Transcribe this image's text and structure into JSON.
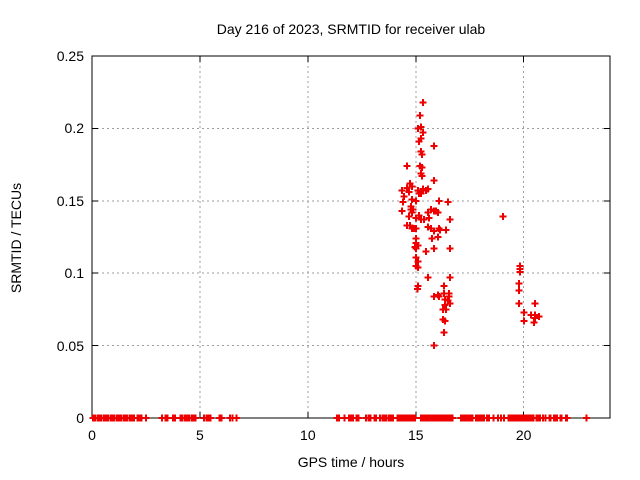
{
  "page": {
    "background": "#ffffff",
    "text_color": "#000000"
  },
  "chart_data": {
    "type": "scatter",
    "title": "Day 216 of 2023, SRMTID for receiver ulab",
    "xlabel": "GPS time / hours",
    "ylabel": "SRMTID / TECUs",
    "xlim": [
      0,
      24
    ],
    "ylim": [
      0,
      0.25
    ],
    "xticks": [
      0,
      5,
      10,
      15,
      20
    ],
    "xtick_labels": [
      "0",
      "5",
      "10",
      "15",
      "20"
    ],
    "yticks": [
      0,
      0.05,
      0.1,
      0.15,
      0.2,
      0.25
    ],
    "ytick_labels": [
      "0",
      "0.05",
      "0.1",
      "0.15",
      "0.2",
      "0.25"
    ],
    "grid": true,
    "grid_style": "dashed",
    "grid_color": "#9e9e9e",
    "border_color": "#000000",
    "legend_position": "none",
    "marker": "plus",
    "marker_color": "#ee0000",
    "series": [
      {
        "name": "SRMTID",
        "points": [
          [
            15.34,
            0.218
          ],
          [
            15.2,
            0.209
          ],
          [
            15.25,
            0.201
          ],
          [
            15.11,
            0.2
          ],
          [
            15.34,
            0.197
          ],
          [
            15.25,
            0.193
          ],
          [
            15.15,
            0.191
          ],
          [
            15.85,
            0.188
          ],
          [
            15.25,
            0.184
          ],
          [
            15.29,
            0.182
          ],
          [
            14.6,
            0.174
          ],
          [
            15.2,
            0.174
          ],
          [
            15.29,
            0.173
          ],
          [
            15.25,
            0.169
          ],
          [
            15.29,
            0.167
          ],
          [
            15.85,
            0.164
          ],
          [
            14.74,
            0.162
          ],
          [
            14.83,
            0.16
          ],
          [
            14.6,
            0.159
          ],
          [
            14.37,
            0.157
          ],
          [
            15.11,
            0.157
          ],
          [
            15.34,
            0.158
          ],
          [
            15.57,
            0.158
          ],
          [
            14.69,
            0.156
          ],
          [
            15.15,
            0.155
          ],
          [
            15.48,
            0.157
          ],
          [
            15.25,
            0.155
          ],
          [
            14.46,
            0.153
          ],
          [
            14.83,
            0.151
          ],
          [
            15.02,
            0.15
          ],
          [
            16.08,
            0.15
          ],
          [
            16.5,
            0.149
          ],
          [
            14.41,
            0.149
          ],
          [
            14.78,
            0.146
          ],
          [
            14.88,
            0.144
          ],
          [
            14.37,
            0.143
          ],
          [
            14.79,
            0.144
          ],
          [
            14.83,
            0.142
          ],
          [
            15.71,
            0.144
          ],
          [
            15.85,
            0.143
          ],
          [
            16.03,
            0.142
          ],
          [
            15.57,
            0.142
          ],
          [
            15.94,
            0.143
          ],
          [
            14.69,
            0.139
          ],
          [
            15.15,
            0.14
          ],
          [
            15.02,
            0.138
          ],
          [
            15.25,
            0.137
          ],
          [
            15.39,
            0.137
          ],
          [
            15.62,
            0.138
          ],
          [
            16.59,
            0.137
          ],
          [
            14.6,
            0.133
          ],
          [
            14.74,
            0.133
          ],
          [
            14.92,
            0.131
          ],
          [
            14.83,
            0.131
          ],
          [
            15.02,
            0.131
          ],
          [
            15.57,
            0.132
          ],
          [
            15.71,
            0.131
          ],
          [
            16.08,
            0.131
          ],
          [
            15.85,
            0.129
          ],
          [
            16.13,
            0.13
          ],
          [
            16.4,
            0.13
          ],
          [
            16.03,
            0.125
          ],
          [
            15.76,
            0.124
          ],
          [
            15.02,
            0.124
          ],
          [
            15.02,
            0.121
          ],
          [
            14.97,
            0.118
          ],
          [
            15.11,
            0.119
          ],
          [
            15.02,
            0.117
          ],
          [
            15.85,
            0.117
          ],
          [
            16.59,
            0.117
          ],
          [
            15.48,
            0.115
          ],
          [
            15.02,
            0.111
          ],
          [
            15.11,
            0.108
          ],
          [
            15.02,
            0.105
          ],
          [
            15.11,
            0.104
          ],
          [
            15.57,
            0.097
          ],
          [
            16.59,
            0.097
          ],
          [
            15.11,
            0.091
          ],
          [
            15.07,
            0.089
          ],
          [
            16.31,
            0.091
          ],
          [
            15.85,
            0.084
          ],
          [
            16.03,
            0.085
          ],
          [
            16.08,
            0.084
          ],
          [
            16.31,
            0.086
          ],
          [
            16.54,
            0.086
          ],
          [
            16.54,
            0.084
          ],
          [
            16.36,
            0.082
          ],
          [
            16.5,
            0.081
          ],
          [
            16.59,
            0.079
          ],
          [
            16.36,
            0.078
          ],
          [
            16.27,
            0.075
          ],
          [
            16.4,
            0.075
          ],
          [
            16.27,
            0.068
          ],
          [
            16.36,
            0.067
          ],
          [
            16.31,
            0.059
          ],
          [
            15.85,
            0.05
          ],
          [
            19.04,
            0.139
          ],
          [
            19.83,
            0.105
          ],
          [
            19.83,
            0.103
          ],
          [
            19.83,
            0.101
          ],
          [
            19.79,
            0.093
          ],
          [
            19.79,
            0.088
          ],
          [
            19.79,
            0.079
          ],
          [
            20.53,
            0.079
          ],
          [
            20.02,
            0.073
          ],
          [
            20.34,
            0.071
          ],
          [
            20.53,
            0.071
          ],
          [
            20.53,
            0.069
          ],
          [
            20.71,
            0.07
          ],
          [
            20.02,
            0.067
          ],
          [
            20.48,
            0.066
          ]
        ],
        "baseline_zero_x": [
          0.05,
          0.15,
          0.25,
          0.35,
          0.45,
          0.55,
          0.65,
          0.75,
          0.85,
          0.95,
          1.05,
          1.15,
          1.25,
          1.35,
          1.45,
          1.55,
          1.65,
          1.75,
          1.85,
          1.95,
          2.1,
          2.2,
          2.3,
          2.5,
          3.25,
          3.4,
          3.5,
          3.75,
          3.85,
          4.1,
          4.2,
          4.3,
          4.4,
          4.5,
          4.6,
          4.7,
          4.8,
          5.2,
          5.3,
          5.4,
          5.5,
          5.9,
          6.0,
          6.4,
          6.5,
          6.7,
          11.35,
          11.45,
          11.7,
          11.9,
          12.0,
          12.1,
          12.25,
          12.35,
          12.7,
          12.8,
          12.9,
          13.1,
          13.15,
          13.35,
          13.45,
          13.55,
          13.65,
          13.75,
          13.85,
          13.95,
          14.15,
          14.22,
          14.3,
          14.37,
          14.45,
          14.52,
          14.6,
          14.67,
          14.75,
          14.82,
          14.9,
          14.97,
          15.25,
          15.32,
          15.4,
          15.47,
          15.55,
          15.62,
          15.7,
          15.77,
          15.85,
          15.92,
          16.0,
          16.07,
          16.15,
          16.22,
          16.3,
          16.37,
          16.45,
          16.52,
          16.6,
          16.7,
          17.1,
          17.17,
          17.25,
          17.32,
          17.4,
          17.47,
          17.55,
          17.62,
          17.8,
          17.87,
          17.95,
          18.02,
          18.1,
          18.17,
          18.3,
          18.4,
          18.6,
          18.8,
          18.95,
          19.1,
          19.3,
          19.37,
          19.45,
          19.52,
          19.6,
          19.67,
          19.75,
          19.82,
          19.9,
          20.0,
          20.07,
          20.15,
          20.22,
          20.3,
          20.37,
          20.45,
          20.6,
          20.67,
          20.75,
          20.9,
          21.0,
          21.2,
          21.25,
          21.4,
          21.47,
          21.55,
          21.7,
          21.75,
          21.95,
          22.0,
          22.9
        ]
      }
    ]
  }
}
